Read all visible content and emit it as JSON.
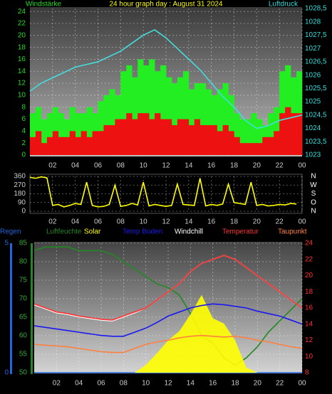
{
  "chart_data": [
    {
      "type": "combo",
      "title": "24 hour graph day : August 31 2024",
      "ylabel": "Windstärke",
      "y2label": "Luftdruck",
      "xlim": [
        0,
        24
      ],
      "xticks": [
        {
          "value": 2,
          "label": "02"
        },
        {
          "value": 4,
          "label": "04"
        },
        {
          "value": 6,
          "label": "06"
        },
        {
          "value": 8,
          "label": "08"
        },
        10,
        12,
        14,
        16,
        18,
        20,
        22,
        {
          "value": 24,
          "label": "00"
        }
      ],
      "ylim": [
        0,
        24.5
      ],
      "yticks": [
        0,
        2,
        4,
        6,
        8,
        10,
        12,
        14,
        16,
        18,
        20,
        22,
        24
      ],
      "y2lim": [
        1023,
        1028.5
      ],
      "y2ticks": [
        1023,
        {
          "value": 1023.5,
          "label": "1023,5"
        },
        1024,
        {
          "value": 1024.5,
          "label": "1024,5"
        },
        1025,
        {
          "value": 1025.5,
          "label": "1025,5"
        },
        1026,
        {
          "value": 1026.5,
          "label": "1026,5"
        },
        1027,
        {
          "value": 1027.5,
          "label": "1027,5"
        },
        1028,
        {
          "value": 1028.5,
          "label": "1028,5"
        }
      ],
      "grid": true,
      "ycolor": "#22dd22",
      "y2color": "#33dddd",
      "x": [
        0,
        0.5,
        1,
        1.5,
        2,
        2.5,
        3,
        3.5,
        4,
        4.5,
        5,
        5.5,
        6,
        6.5,
        7,
        7.5,
        8,
        8.5,
        9,
        9.5,
        10,
        10.5,
        11,
        11.5,
        12,
        12.5,
        13,
        13.5,
        14,
        14.5,
        15,
        15.5,
        16,
        16.5,
        17,
        17.5,
        18,
        18.5,
        19,
        19.5,
        20,
        20.5,
        21,
        21.5,
        22,
        22.5,
        23,
        23.5
      ],
      "series": [
        {
          "type": "bar",
          "color": "#22ee22",
          "values": [
            7,
            8,
            6,
            7,
            8,
            7,
            6,
            8,
            7,
            7,
            8,
            7,
            9,
            10,
            11,
            10,
            14,
            15,
            13,
            16,
            15,
            16,
            14,
            15,
            13,
            12,
            13,
            14,
            11,
            12,
            12,
            11,
            10,
            11,
            12,
            10,
            7,
            6,
            6,
            7,
            6,
            5,
            7,
            8,
            14,
            15,
            13,
            14
          ]
        },
        {
          "type": "bar",
          "color": "#ee1111",
          "values": [
            3,
            4,
            2,
            3,
            4,
            3,
            3,
            4,
            3,
            4,
            3,
            4,
            4,
            5,
            5,
            6,
            6,
            7,
            6,
            7,
            7,
            6,
            7,
            6,
            6,
            5,
            6,
            6,
            5,
            6,
            5,
            5,
            5,
            4,
            5,
            4,
            3,
            2,
            2,
            2,
            2,
            3,
            3,
            4,
            7,
            8,
            7,
            7
          ]
        },
        {
          "type": "line",
          "axis": "y2",
          "color": "#44dddd",
          "xkey": "hours",
          "x": [
            0,
            1,
            2,
            3,
            4,
            5,
            6,
            7,
            8,
            9,
            10,
            11,
            12,
            13,
            14,
            15,
            16,
            17,
            18,
            19,
            20,
            21,
            22,
            23,
            24
          ],
          "values": [
            1025.4,
            1025.7,
            1025.9,
            1026.1,
            1026.3,
            1026.4,
            1026.5,
            1026.7,
            1026.9,
            1027.2,
            1027.5,
            1027.7,
            1027.4,
            1027.0,
            1026.6,
            1026.2,
            1025.7,
            1025.2,
            1024.8,
            1024.3,
            1024.0,
            1024.1,
            1024.3,
            1024.4,
            1024.5
          ]
        }
      ]
    },
    {
      "type": "line",
      "xlim": [
        0,
        24
      ],
      "xticks": [
        {
          "value": 2,
          "label": "02"
        },
        {
          "value": 4,
          "label": "04"
        },
        {
          "value": 6,
          "label": "06"
        },
        {
          "value": 8,
          "label": "08"
        },
        10,
        12,
        14,
        16,
        18,
        20,
        22,
        {
          "value": 24,
          "label": "00"
        }
      ],
      "ylim": [
        0,
        360
      ],
      "yticks": [
        0,
        90,
        180,
        270,
        360
      ],
      "y2lim": [
        0,
        360
      ],
      "y2ticks": [
        {
          "value": 360,
          "label": "N"
        },
        {
          "value": 270,
          "label": "W"
        },
        {
          "value": 180,
          "label": "S"
        },
        {
          "value": 90,
          "label": "O"
        },
        {
          "value": 0,
          "label": "N"
        }
      ],
      "grid": true,
      "ycolor": "#cccccc",
      "y2color": "#ffffff",
      "x": [
        0,
        0.5,
        1,
        1.5,
        2,
        2.5,
        3,
        3.5,
        4,
        4.5,
        5,
        5.5,
        6,
        6.5,
        7,
        7.5,
        8,
        8.5,
        9,
        9.5,
        10,
        10.5,
        11,
        11.5,
        12,
        12.5,
        13,
        13.5,
        14,
        14.5,
        15,
        15.5,
        16,
        16.5,
        17,
        17.5,
        18,
        18.5,
        19,
        19.5,
        20,
        20.5,
        21,
        21.5,
        22,
        22.5,
        23,
        23.5
      ],
      "series": [
        {
          "type": "line",
          "color": "#ffff00",
          "values": [
            350,
            340,
            355,
            345,
            60,
            70,
            45,
            60,
            80,
            70,
            300,
            60,
            45,
            50,
            70,
            270,
            50,
            60,
            80,
            65,
            300,
            55,
            70,
            60,
            50,
            60,
            280,
            70,
            65,
            60,
            340,
            55,
            70,
            60,
            75,
            280,
            90,
            80,
            70,
            300,
            60,
            70,
            55,
            60,
            70,
            65,
            80,
            75
          ]
        }
      ]
    },
    {
      "type": "line",
      "xlim": [
        0,
        24
      ],
      "xticks": [
        {
          "value": 2,
          "label": "02"
        },
        {
          "value": 4,
          "label": "04"
        },
        {
          "value": 6,
          "label": "06"
        },
        {
          "value": 8,
          "label": "08"
        },
        10,
        12,
        14,
        16,
        18,
        20,
        22,
        {
          "value": 24,
          "label": "00"
        }
      ],
      "ylim": [
        50,
        85
      ],
      "yticks": [
        50,
        55,
        60,
        65,
        70,
        75,
        80,
        85
      ],
      "y2lim": [
        8,
        24
      ],
      "y2ticks": [
        8,
        10,
        12,
        14,
        16,
        18,
        20,
        22,
        24
      ],
      "y3lim": [
        0,
        5
      ],
      "y3ticks": [
        0,
        5
      ],
      "solarlim": [
        0,
        1000
      ],
      "grid": true,
      "ycolor": "#33aa33",
      "y2color": "#ff3030",
      "y3color": "#2266dd",
      "x": [
        0,
        1,
        2,
        3,
        4,
        5,
        6,
        7,
        8,
        9,
        10,
        11,
        12,
        13,
        14,
        15,
        16,
        17,
        18,
        19,
        20,
        21,
        22,
        23,
        24
      ],
      "series": [
        {
          "name": "Regen",
          "type": "line",
          "axis": "y3",
          "color": "#2266dd",
          "values": [
            0,
            0,
            0,
            0,
            0,
            0,
            0,
            0,
            0,
            0,
            0,
            0,
            0,
            0,
            0,
            0,
            0,
            0,
            0,
            0,
            0,
            0,
            0,
            0,
            0
          ]
        },
        {
          "name": "Luftfeuchte",
          "type": "line",
          "axis": "y",
          "color": "#228822",
          "values": [
            83,
            84,
            84,
            84,
            83,
            83,
            83,
            82,
            80,
            78,
            76,
            74,
            73,
            71,
            66,
            60,
            58,
            54,
            52,
            54,
            57,
            61,
            64,
            67,
            70
          ]
        },
        {
          "name": "Solar",
          "type": "area",
          "axis": "solar",
          "color": "#ffff00",
          "values": [
            0,
            0,
            0,
            0,
            0,
            0,
            0,
            0,
            0,
            0,
            60,
            150,
            250,
            320,
            450,
            600,
            420,
            380,
            250,
            40,
            0,
            0,
            0,
            0,
            0
          ]
        },
        {
          "name": "Temp Boden",
          "type": "line",
          "axis": "y2",
          "color": "#1a1aee",
          "values": [
            13.8,
            13.6,
            13.4,
            13.2,
            13,
            12.8,
            12.6,
            12.5,
            12.5,
            13,
            13.5,
            14.2,
            15,
            15.5,
            16,
            16.3,
            16.5,
            16.4,
            16.2,
            16,
            15.6,
            15.3,
            15,
            14.5,
            14
          ]
        },
        {
          "name": "Windchill",
          "type": "line",
          "axis": "y2",
          "color": "#ffffff",
          "values": [
            16.4,
            15.9,
            15.4,
            15.2,
            14.9,
            14.7,
            14.5,
            14.4,
            14.9,
            15.4,
            16,
            17,
            18,
            19,
            20.5,
            21.5,
            22,
            22.5,
            22,
            21,
            20,
            19,
            18,
            17,
            16
          ]
        },
        {
          "name": "Temperatur",
          "type": "line",
          "axis": "y2",
          "color": "#ff3030",
          "values": [
            16.5,
            16,
            15.5,
            15.3,
            15,
            14.8,
            14.6,
            14.5,
            15,
            15.5,
            16,
            17,
            18,
            19,
            20.5,
            21.5,
            22,
            22.5,
            22,
            21,
            20,
            19,
            18,
            17,
            16
          ]
        },
        {
          "name": "Taupunkt",
          "type": "line",
          "axis": "y2",
          "color": "#ff8040",
          "values": [
            11.5,
            11.4,
            11.3,
            11.2,
            11,
            10.8,
            10.6,
            10.5,
            10.5,
            11,
            11.5,
            11.8,
            12,
            12.3,
            12.5,
            12.6,
            12.5,
            12.4,
            12.5,
            12.3,
            12,
            11.8,
            11.5,
            11.2,
            11
          ]
        }
      ]
    }
  ]
}
